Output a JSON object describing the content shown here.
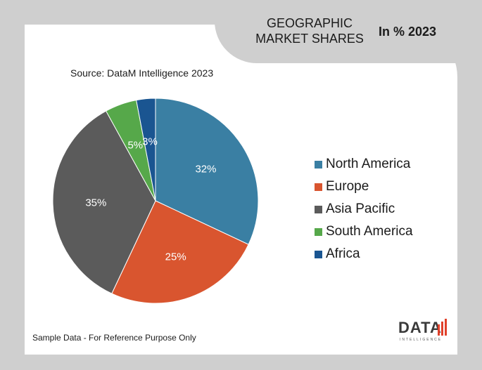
{
  "header": {
    "title_line1": "GEOGRAPHIC",
    "title_line2": "MARKET SHARES",
    "subtitle": "In % 2023"
  },
  "source": "Source: DataM Intelligence  2023",
  "footnote": "Sample Data - For Reference Purpose Only",
  "logo": {
    "word": "DATA",
    "sub": "INTELLIGENCE"
  },
  "chart_data": {
    "type": "pie",
    "start_angle_deg": 0,
    "direction": "clockwise",
    "slices": [
      {
        "name": "North America",
        "value": 32,
        "label": "32%",
        "color": "#3a7fa3"
      },
      {
        "name": "Europe",
        "value": 25,
        "label": "25%",
        "color": "#d9552f"
      },
      {
        "name": "Asia Pacific",
        "value": 35,
        "label": "35%",
        "color": "#5b5b5b"
      },
      {
        "name": "South America",
        "value": 5,
        "label": "5%",
        "color": "#56a84a"
      },
      {
        "name": "Africa",
        "value": 3,
        "label": "3%",
        "color": "#1a5591"
      }
    ],
    "legend_position": "right"
  }
}
